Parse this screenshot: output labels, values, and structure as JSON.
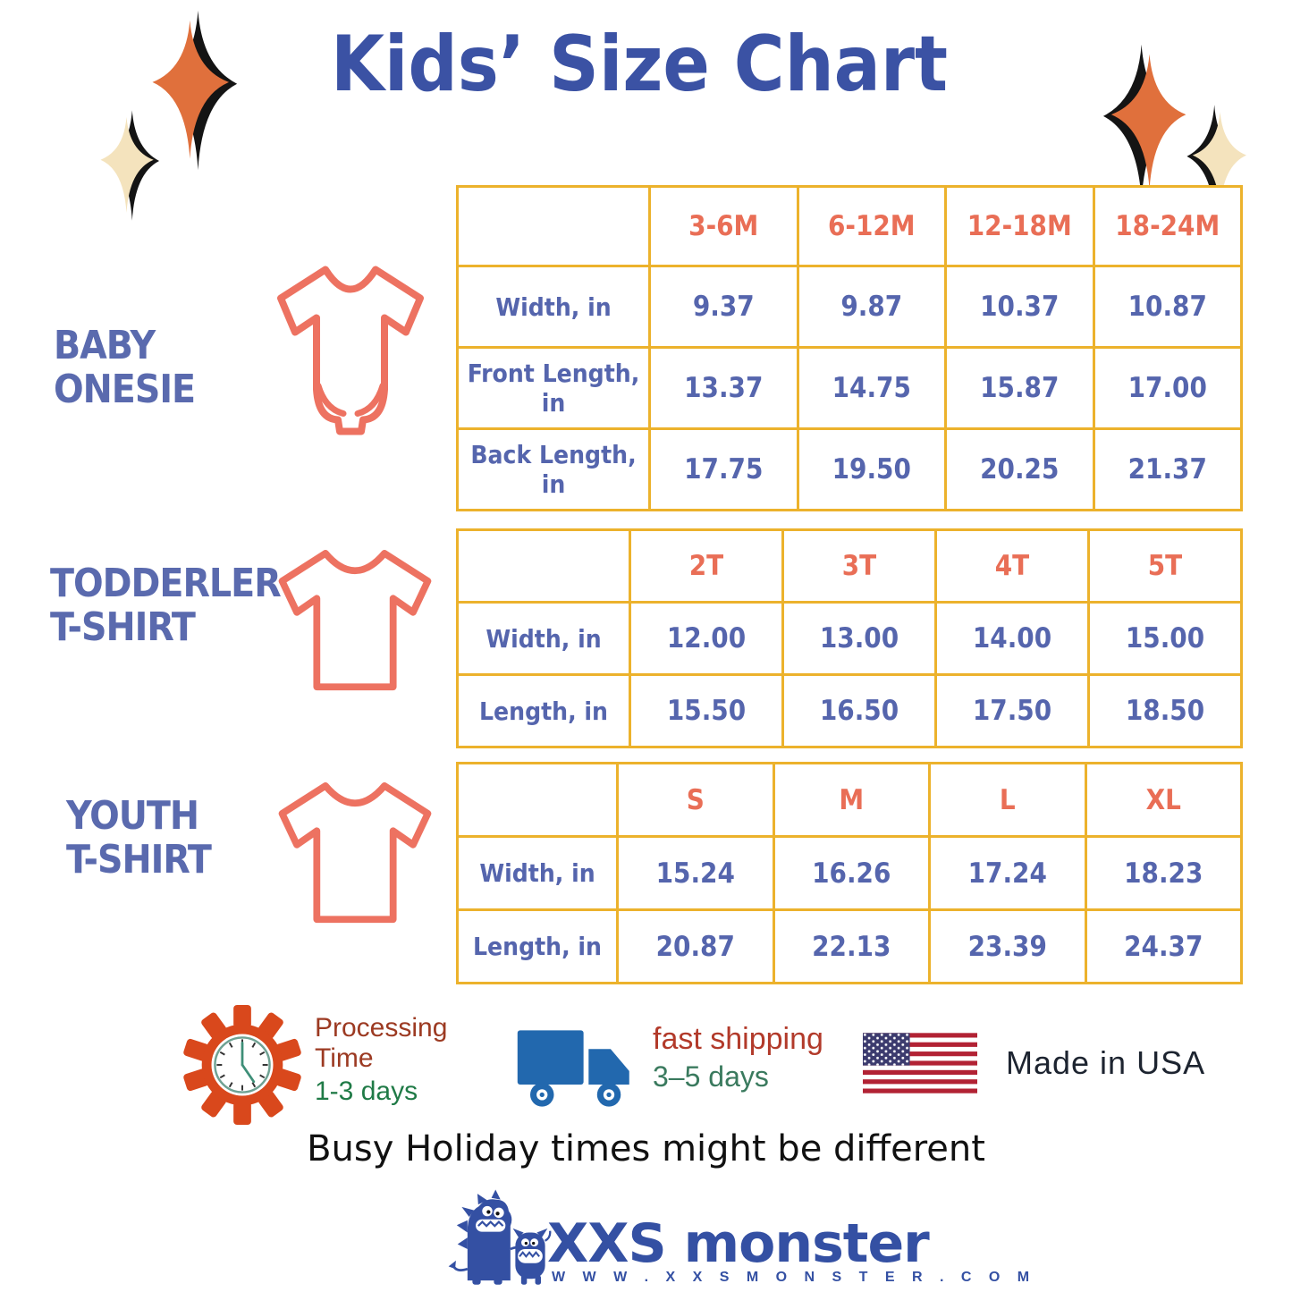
{
  "page": {
    "title": "Kids’ Size Chart"
  },
  "sections": [
    {
      "name": "baby-onesie",
      "label_lines": [
        "BABY",
        "ONESIE"
      ],
      "table": {
        "headers": [
          "",
          "3-6M",
          "6-12M",
          "12-18M",
          "18-24M"
        ],
        "rows": [
          [
            "Width, in",
            "9.37",
            "9.87",
            "10.37",
            "10.87"
          ],
          [
            "Front Length, in",
            "13.37",
            "14.75",
            "15.87",
            "17.00"
          ],
          [
            "Back Length, in",
            "17.75",
            "19.50",
            "20.25",
            "21.37"
          ]
        ]
      }
    },
    {
      "name": "toddler-t-shirt",
      "label_lines": [
        "TODDERLER",
        "T-SHIRT"
      ],
      "table": {
        "headers": [
          "",
          "2T",
          "3T",
          "4T",
          "5T"
        ],
        "rows": [
          [
            "Width, in",
            "12.00",
            "13.00",
            "14.00",
            "15.00"
          ],
          [
            "Length, in",
            "15.50",
            "16.50",
            "17.50",
            "18.50"
          ]
        ]
      }
    },
    {
      "name": "youth-t-shirt",
      "label_lines": [
        "YOUTH",
        "T-SHIRT"
      ],
      "table": {
        "headers": [
          "",
          "S",
          "M",
          "L",
          "XL"
        ],
        "rows": [
          [
            "Width, in",
            "15.24",
            "16.26",
            "17.24",
            "18.23"
          ],
          [
            "Length, in",
            "20.87",
            "22.13",
            "23.39",
            "24.37"
          ]
        ]
      }
    }
  ],
  "info": {
    "processing": {
      "label": "Processing Time",
      "duration": "1-3 days"
    },
    "shipping": {
      "label": "fast shipping",
      "duration": "3–5 days"
    },
    "origin": {
      "label": "Made in USA"
    },
    "disclaimer": "Busy Holiday times might be different"
  },
  "brand": {
    "name": "XXS monster",
    "website": "W W W . X X S M O N S T E R . C O M"
  },
  "colors": {
    "title_blue": "#3B52A4",
    "table_border_gold": "#ECB22C",
    "size_header_coral": "#E96E56",
    "value_blue": "#5565AD",
    "garment_icon_coral": "#ED7261",
    "gear_orange": "#D9481C",
    "clock_green": "#55917F",
    "processing_red": "#9C3A22",
    "days_green": "#1F7A46",
    "truck_blue": "#2268AE",
    "shipping_red": "#B23A2A",
    "flag_navy": "#3C3B6E",
    "flag_red": "#B22234",
    "brand_blue": "#3450A3",
    "sparkle_orange": "#E0703C",
    "sparkle_cream": "#F4E3BD"
  }
}
